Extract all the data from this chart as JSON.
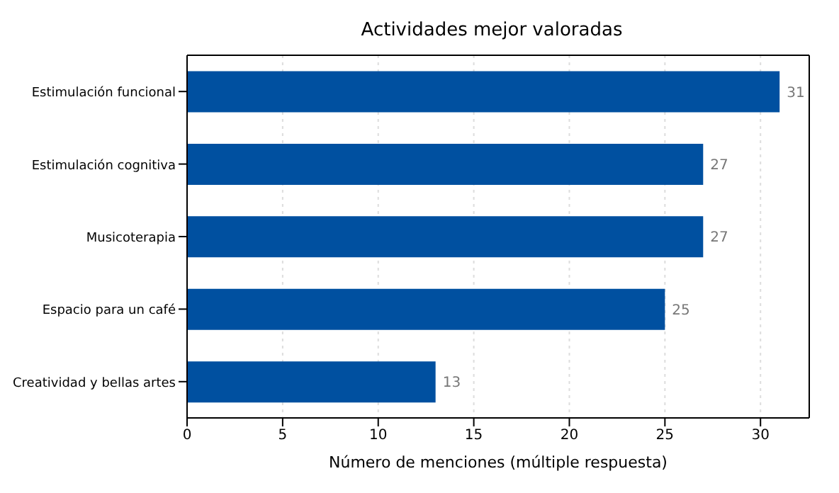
{
  "chart_data": {
    "type": "bar",
    "orientation": "horizontal",
    "title": "Actividades mejor valoradas",
    "xlabel": "Número de menciones (múltiple respuesta)",
    "categories": [
      "Estimulación funcional",
      "Estimulación cognitiva",
      "Musicoterapia",
      "Espacio para un café",
      "Creatividad y bellas artes"
    ],
    "values": [
      31,
      27,
      27,
      25,
      13
    ],
    "color": "#0050a0",
    "xlim": [
      0,
      32.55
    ],
    "xticks": [
      0,
      5,
      10,
      15,
      20,
      25,
      30
    ],
    "grid": "x",
    "data_labels": true
  }
}
